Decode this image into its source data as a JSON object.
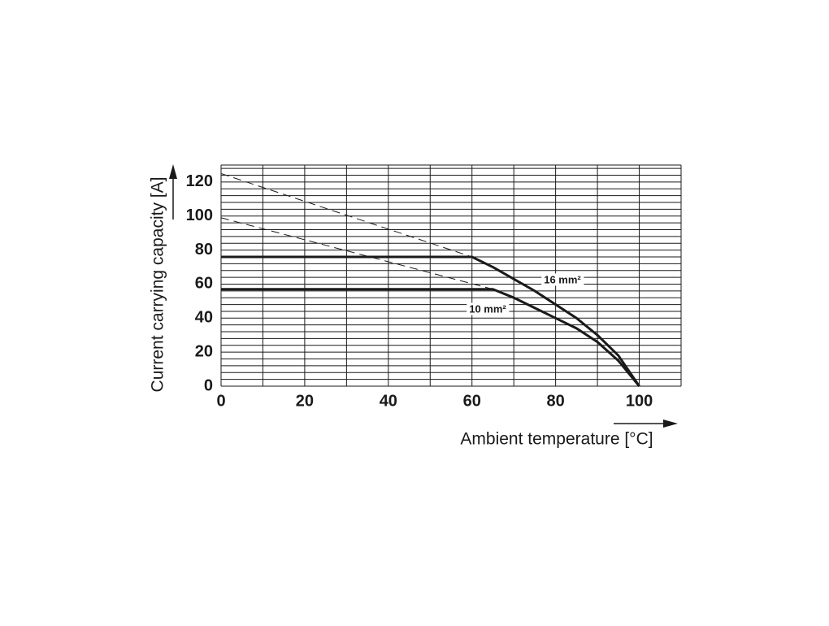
{
  "chart_data": {
    "type": "line",
    "x_label": "Ambient temperature [°C]",
    "y_label": "Current carrying capacity [A]",
    "xlim": [
      0,
      110
    ],
    "xticks": [
      0,
      20,
      40,
      60,
      80,
      100
    ],
    "x_minor_grid": [
      10,
      30,
      50,
      70,
      90,
      110
    ],
    "ylim": [
      0,
      130
    ],
    "yticks": [
      0,
      20,
      40,
      60,
      80,
      100,
      120
    ],
    "y_minor_grid": [
      4,
      8,
      12,
      16,
      24,
      28,
      32,
      36,
      44,
      48,
      52,
      56,
      64,
      68,
      72,
      76,
      84,
      88,
      92,
      96,
      104,
      108,
      112,
      116,
      124,
      128,
      130
    ],
    "grid": true,
    "series": [
      {
        "name": "16 mm²",
        "color": "#1a1a1a",
        "x": [
          0,
          60,
          65,
          70,
          75,
          80,
          85,
          90,
          95,
          100
        ],
        "values": [
          76,
          76,
          70,
          63,
          56,
          48,
          40,
          30,
          18,
          0
        ],
        "extrapolation": {
          "x": [
            0,
            60
          ],
          "values": [
            125,
            76
          ]
        }
      },
      {
        "name": "10 mm²",
        "color": "#1a1a1a",
        "x": [
          0,
          65,
          70,
          75,
          80,
          85,
          90,
          95,
          100
        ],
        "values": [
          57,
          57,
          52,
          46,
          40,
          34,
          26,
          15,
          0
        ],
        "extrapolation": {
          "x": [
            0,
            65
          ],
          "values": [
            99,
            57
          ]
        }
      }
    ]
  }
}
